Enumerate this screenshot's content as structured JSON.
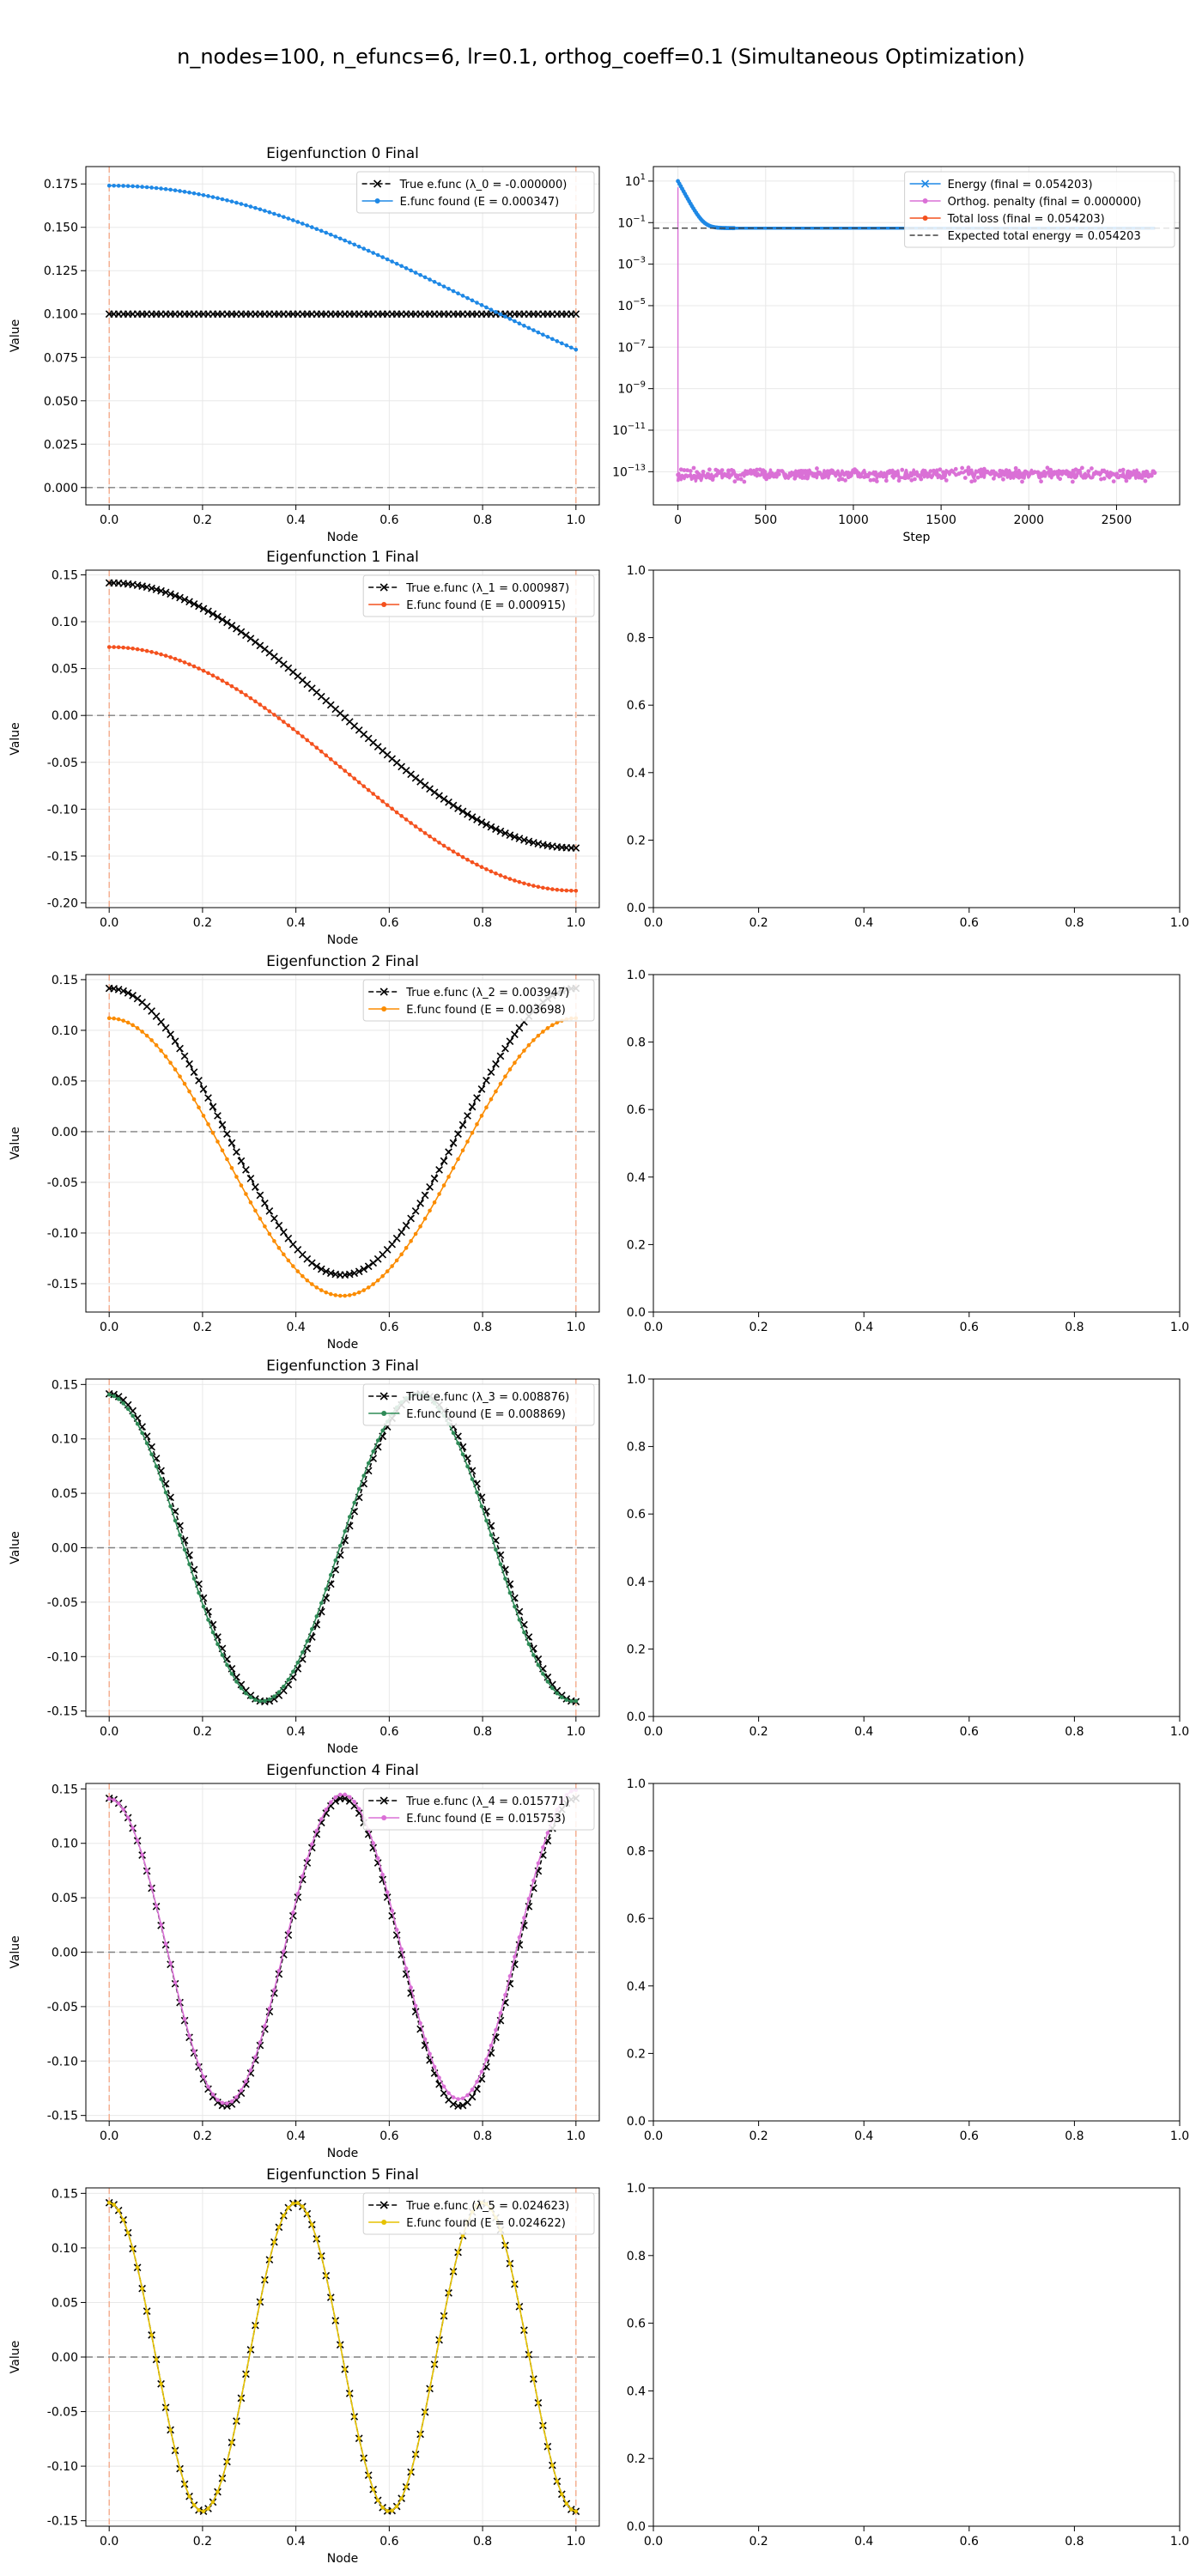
{
  "figure": {
    "suptitle": "n_nodes=100, n_efuncs=6, lr=0.1, orthog_coeff=0.1 (Simultaneous Optimization)"
  },
  "colors": {
    "true_efunc": "#000000",
    "found": [
      "#1e88e5",
      "#f4511e",
      "#fb8c00",
      "#2e8b57",
      "#da70d6",
      "#e6c200"
    ],
    "boundary_line": "#f4a582",
    "zero_line": "#808080",
    "energy": "#1e88e5",
    "orthog": "#da70d6",
    "total": "#f4511e",
    "expected": "#404040"
  },
  "chart_data": [
    {
      "type": "line",
      "title": "Eigenfunction 0 Final",
      "xlabel": "Node",
      "ylabel": "Value",
      "xlim": [
        -0.05,
        1.05
      ],
      "ylim": [
        -0.01,
        0.185
      ],
      "xticks": [
        "0.0",
        "0.2",
        "0.4",
        "0.6",
        "0.8",
        "1.0"
      ],
      "yticks": [
        "0.000",
        "0.025",
        "0.050",
        "0.075",
        "0.100",
        "0.125",
        "0.150",
        "0.175"
      ],
      "ytick_values": [
        0.0,
        0.025,
        0.05,
        0.075,
        0.1,
        0.125,
        0.15,
        0.175
      ],
      "legend": "top-right",
      "series": [
        {
          "name": "True e.func (λ_0 = -0.000000)",
          "shape": "const",
          "value": 0.1
        },
        {
          "name": "E.func found (E = 0.000347)",
          "shape": "cos",
          "amplitude": 0.065,
          "frequency": 0.65,
          "phase": 0.0,
          "offset": 0.109,
          "tilt": 0.0
        }
      ]
    },
    {
      "type": "line",
      "title": "Eigenfunction 1 Final",
      "xlabel": "Node",
      "ylabel": "Value",
      "xlim": [
        -0.05,
        1.05
      ],
      "ylim": [
        -0.205,
        0.155
      ],
      "xticks": [
        "0.0",
        "0.2",
        "0.4",
        "0.6",
        "0.8",
        "1.0"
      ],
      "yticks": [
        "-0.20",
        "-0.15",
        "-0.10",
        "-0.05",
        "0.00",
        "0.05",
        "0.10",
        "0.15"
      ],
      "ytick_values": [
        -0.2,
        -0.15,
        -0.1,
        -0.05,
        0.0,
        0.05,
        0.1,
        0.15
      ],
      "legend": "top-right",
      "series": [
        {
          "name": "True e.func (λ_1 = 0.000987)",
          "shape": "cos",
          "amplitude": 0.1414,
          "frequency": 1,
          "phase": 0.0,
          "offset": 0.0,
          "tilt": 0.0
        },
        {
          "name": "E.func found (E = 0.000915)",
          "shape": "cos",
          "amplitude": 0.13,
          "frequency": 1,
          "phase": 0.0,
          "offset": -0.057,
          "tilt": 0.0
        }
      ]
    },
    {
      "type": "line",
      "title": "Eigenfunction 2 Final",
      "xlabel": "Node",
      "ylabel": "Value",
      "xlim": [
        -0.05,
        1.05
      ],
      "ylim": [
        -0.178,
        0.155
      ],
      "xticks": [
        "0.0",
        "0.2",
        "0.4",
        "0.6",
        "0.8",
        "1.0"
      ],
      "yticks": [
        "-0.15",
        "-0.10",
        "-0.05",
        "0.00",
        "0.05",
        "0.10",
        "0.15"
      ],
      "ytick_values": [
        -0.15,
        -0.1,
        -0.05,
        0.0,
        0.05,
        0.1,
        0.15
      ],
      "legend": "top-right",
      "series": [
        {
          "name": "True e.func (λ_2 = 0.003947)",
          "shape": "cos",
          "amplitude": 0.1414,
          "frequency": 2,
          "phase": 0.0,
          "offset": 0.0,
          "tilt": 0.0
        },
        {
          "name": "E.func found (E = 0.003698)",
          "shape": "cos",
          "amplitude": 0.137,
          "frequency": 2,
          "phase": 0.0,
          "offset": -0.025,
          "tilt": 0.0
        }
      ]
    },
    {
      "type": "line",
      "title": "Eigenfunction 3 Final",
      "xlabel": "Node",
      "ylabel": "Value",
      "xlim": [
        -0.05,
        1.05
      ],
      "ylim": [
        -0.155,
        0.155
      ],
      "xticks": [
        "0.0",
        "0.2",
        "0.4",
        "0.6",
        "0.8",
        "1.0"
      ],
      "yticks": [
        "-0.15",
        "-0.10",
        "-0.05",
        "0.00",
        "0.05",
        "0.10",
        "0.15"
      ],
      "ytick_values": [
        -0.15,
        -0.1,
        -0.05,
        0.0,
        0.05,
        0.1,
        0.15
      ],
      "legend": "top-right",
      "series": [
        {
          "name": "True e.func (λ_3 = 0.008876)",
          "shape": "cos",
          "amplitude": 0.1414,
          "frequency": 3,
          "phase": 0.0,
          "offset": 0.0,
          "tilt": 0.0
        },
        {
          "name": "E.func found (E = 0.008869)",
          "shape": "cos",
          "amplitude": 0.141,
          "frequency": 3,
          "phase": 0.06,
          "offset": 0.0,
          "tilt": 0.0
        }
      ]
    },
    {
      "type": "line",
      "title": "Eigenfunction 4 Final",
      "xlabel": "Node",
      "ylabel": "Value",
      "xlim": [
        -0.05,
        1.05
      ],
      "ylim": [
        -0.155,
        0.155
      ],
      "xticks": [
        "0.0",
        "0.2",
        "0.4",
        "0.6",
        "0.8",
        "1.0"
      ],
      "yticks": [
        "-0.15",
        "-0.10",
        "-0.05",
        "0.00",
        "0.05",
        "0.10",
        "0.15"
      ],
      "ytick_values": [
        -0.15,
        -0.1,
        -0.05,
        0.0,
        0.05,
        0.1,
        0.15
      ],
      "legend": "top-right",
      "series": [
        {
          "name": "True e.func (λ_4 = 0.015771)",
          "shape": "cos",
          "amplitude": 0.1414,
          "frequency": 4,
          "phase": 0.0,
          "offset": 0.0,
          "tilt": 0.0
        },
        {
          "name": "E.func found (E = 0.015753)",
          "shape": "cos",
          "amplitude": 0.141,
          "frequency": 4,
          "phase": 0.0,
          "offset": 0.0,
          "tilt": 0.008
        }
      ]
    },
    {
      "type": "line",
      "title": "Eigenfunction 5 Final",
      "xlabel": "Node",
      "ylabel": "Value",
      "xlim": [
        -0.05,
        1.05
      ],
      "ylim": [
        -0.155,
        0.155
      ],
      "xticks": [
        "0.0",
        "0.2",
        "0.4",
        "0.6",
        "0.8",
        "1.0"
      ],
      "yticks": [
        "-0.15",
        "-0.10",
        "-0.05",
        "0.00",
        "0.05",
        "0.10",
        "0.15"
      ],
      "ytick_values": [
        -0.15,
        -0.1,
        -0.05,
        0.0,
        0.05,
        0.1,
        0.15
      ],
      "legend": "top-right",
      "series": [
        {
          "name": "True e.func (λ_5 = 0.024623)",
          "shape": "cos",
          "amplitude": 0.1414,
          "frequency": 5,
          "phase": 0.0,
          "offset": 0.0,
          "tilt": 0.0
        },
        {
          "name": "E.func found (E = 0.024622)",
          "shape": "cos",
          "amplitude": 0.1414,
          "frequency": 5,
          "phase": 0.0,
          "offset": 0.0,
          "tilt": 0.0
        }
      ]
    },
    {
      "type": "line",
      "xlabel": "Step",
      "ylabel": "",
      "xlim": [
        -140,
        2860
      ],
      "ylim_log10": [
        -14.6,
        1.7
      ],
      "log_y": true,
      "xticks": [
        0,
        500,
        1000,
        1500,
        2000,
        2500
      ],
      "yticks_log10": [
        1,
        -1,
        -3,
        -5,
        -7,
        -9,
        -11,
        -13
      ],
      "legend": "top-right",
      "series": [
        {
          "name": "Energy (final = 0.054203)",
          "final": 0.054203,
          "start": 10
        },
        {
          "name": "Orthog. penalty (final = 0.000000)",
          "spike": 5,
          "band_log10": [
            -13.5,
            -12.8
          ]
        },
        {
          "name": "Total loss (final = 0.054203)",
          "final": 0.054203,
          "start": 10
        },
        {
          "name": "Expected total energy = 0.054203",
          "value": 0.054203,
          "style": "dashed"
        }
      ],
      "steps": 2720
    },
    {
      "type": "empty",
      "xticks": [
        "0.0",
        "0.2",
        "0.4",
        "0.6",
        "0.8",
        "1.0"
      ],
      "yticks": [
        "0.0",
        "0.2",
        "0.4",
        "0.6",
        "0.8",
        "1.0"
      ]
    },
    {
      "type": "empty",
      "xticks": [
        "0.0",
        "0.2",
        "0.4",
        "0.6",
        "0.8",
        "1.0"
      ],
      "yticks": [
        "0.0",
        "0.2",
        "0.4",
        "0.6",
        "0.8",
        "1.0"
      ]
    },
    {
      "type": "empty",
      "xticks": [
        "0.0",
        "0.2",
        "0.4",
        "0.6",
        "0.8",
        "1.0"
      ],
      "yticks": [
        "0.0",
        "0.2",
        "0.4",
        "0.6",
        "0.8",
        "1.0"
      ]
    },
    {
      "type": "empty",
      "xticks": [
        "0.0",
        "0.2",
        "0.4",
        "0.6",
        "0.8",
        "1.0"
      ],
      "yticks": [
        "0.0",
        "0.2",
        "0.4",
        "0.6",
        "0.8",
        "1.0"
      ]
    },
    {
      "type": "empty",
      "xticks": [
        "0.0",
        "0.2",
        "0.4",
        "0.6",
        "0.8",
        "1.0"
      ],
      "yticks": [
        "0.0",
        "0.2",
        "0.4",
        "0.6",
        "0.8",
        "1.0"
      ]
    }
  ]
}
